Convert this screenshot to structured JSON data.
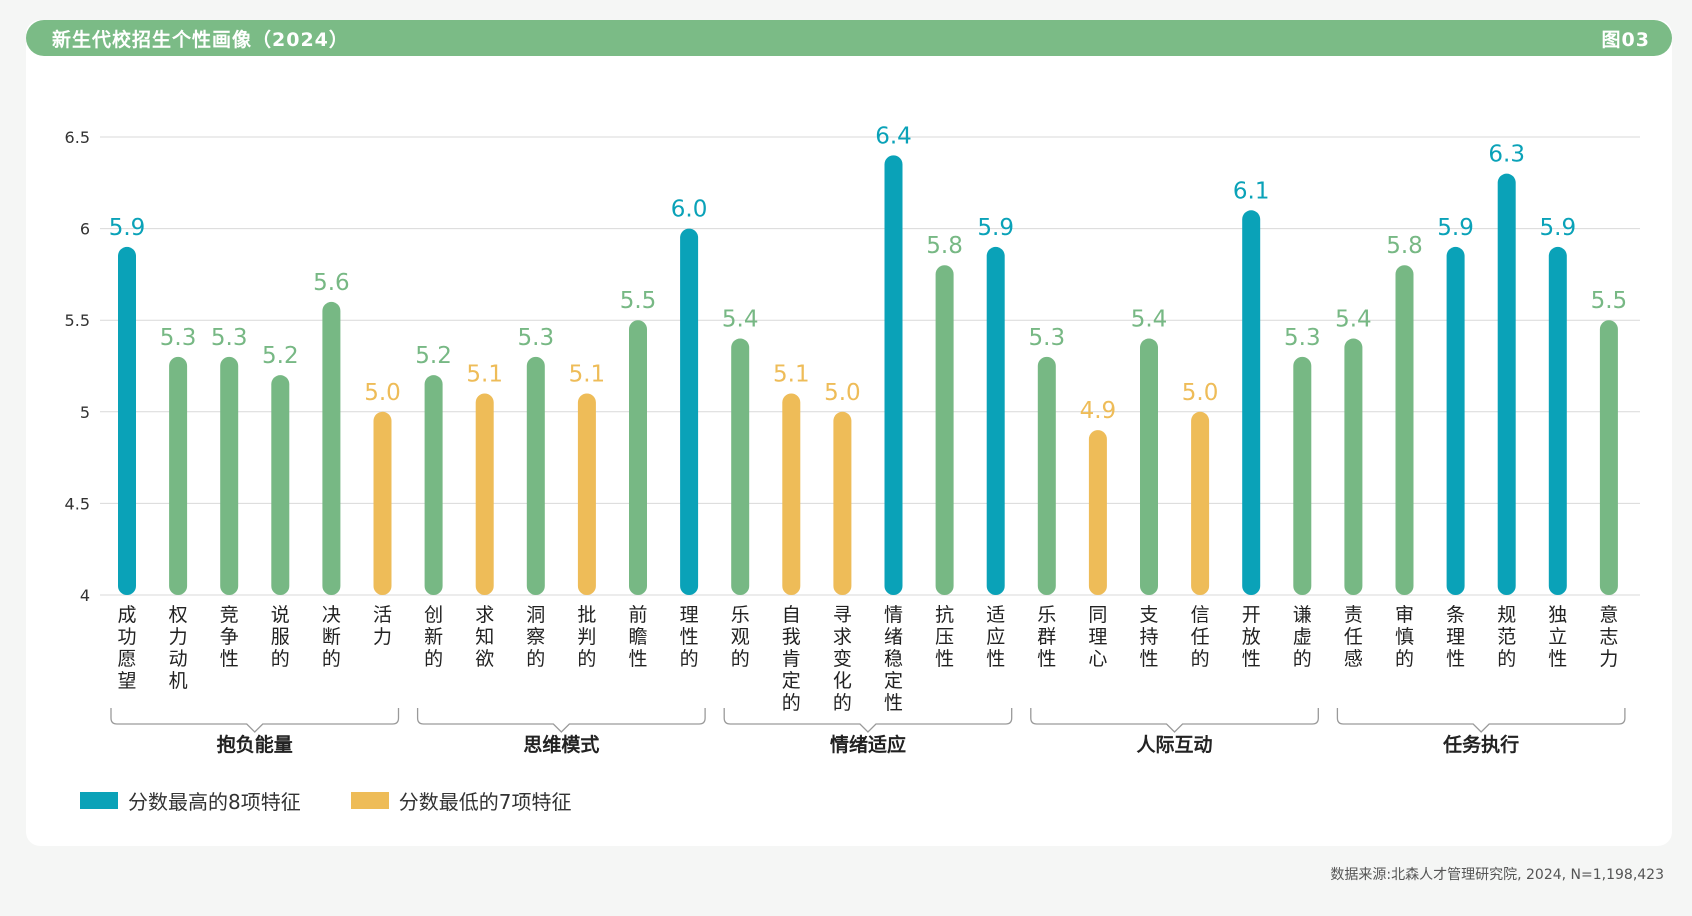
{
  "header": {
    "title": "新生代校招生个性画像（2024）",
    "figure_no": "图03"
  },
  "legend": [
    {
      "label": "分数最高的8项特征",
      "color": "#0aa2b8"
    },
    {
      "label": "分数最低的7项特征",
      "color": "#eebc58"
    }
  ],
  "source": "数据来源:北森人才管理研究院, 2024, N=1,198,423",
  "colors": {
    "high": "#0aa2b8",
    "low": "#eebc58",
    "normal": "#77b884",
    "grid": "#d9d9d9",
    "bracket": "#9a9a9a"
  },
  "chart_data": {
    "type": "bar",
    "ylim": [
      4,
      6.5
    ],
    "yticks": [
      "4",
      "4.5",
      "5",
      "5.5",
      "6",
      "6.5"
    ],
    "groups": [
      {
        "name": "抱负能量",
        "start": 0,
        "end": 5
      },
      {
        "name": "思维模式",
        "start": 6,
        "end": 11
      },
      {
        "name": "情绪适应",
        "start": 12,
        "end": 17
      },
      {
        "name": "人际互动",
        "start": 18,
        "end": 23
      },
      {
        "name": "任务执行",
        "start": 24,
        "end": 29
      }
    ],
    "bars": [
      {
        "label": "成功愿望",
        "value": 5.9,
        "value_label": "5.9",
        "kind": "high"
      },
      {
        "label": "权力动机",
        "value": 5.3,
        "value_label": "5.3",
        "kind": "normal"
      },
      {
        "label": "竞争性",
        "value": 5.3,
        "value_label": "5.3",
        "kind": "normal"
      },
      {
        "label": "说服的",
        "value": 5.2,
        "value_label": "5.2",
        "kind": "normal"
      },
      {
        "label": "决断的",
        "value": 5.6,
        "value_label": "5.6",
        "kind": "normal"
      },
      {
        "label": "活力",
        "value": 5.0,
        "value_label": "5.0",
        "kind": "low"
      },
      {
        "label": "创新的",
        "value": 5.2,
        "value_label": "5.2",
        "kind": "normal"
      },
      {
        "label": "求知欲",
        "value": 5.1,
        "value_label": "5.1",
        "kind": "low"
      },
      {
        "label": "洞察的",
        "value": 5.3,
        "value_label": "5.3",
        "kind": "normal"
      },
      {
        "label": "批判的",
        "value": 5.1,
        "value_label": "5.1",
        "kind": "low"
      },
      {
        "label": "前瞻性",
        "value": 5.5,
        "value_label": "5.5",
        "kind": "normal"
      },
      {
        "label": "理性的",
        "value": 6.0,
        "value_label": "6.0",
        "kind": "high"
      },
      {
        "label": "乐观的",
        "value": 5.4,
        "value_label": "5.4",
        "kind": "normal"
      },
      {
        "label": "自我肯定的",
        "value": 5.1,
        "value_label": "5.1",
        "kind": "low"
      },
      {
        "label": "寻求变化的",
        "value": 5.0,
        "value_label": "5.0",
        "kind": "low"
      },
      {
        "label": "情绪稳定性",
        "value": 6.4,
        "value_label": "6.4",
        "kind": "high"
      },
      {
        "label": "抗压性",
        "value": 5.8,
        "value_label": "5.8",
        "kind": "normal"
      },
      {
        "label": "适应性",
        "value": 5.9,
        "value_label": "5.9",
        "kind": "high"
      },
      {
        "label": "乐群性",
        "value": 5.3,
        "value_label": "5.3",
        "kind": "normal"
      },
      {
        "label": "同理心",
        "value": 4.9,
        "value_label": "4.9",
        "kind": "low"
      },
      {
        "label": "支持性",
        "value": 5.4,
        "value_label": "5.4",
        "kind": "normal"
      },
      {
        "label": "信任的",
        "value": 5.0,
        "value_label": "5.0",
        "kind": "low"
      },
      {
        "label": "开放性",
        "value": 6.1,
        "value_label": "6.1",
        "kind": "high"
      },
      {
        "label": "谦虚的",
        "value": 5.3,
        "value_label": "5.3",
        "kind": "normal"
      },
      {
        "label": "责任感",
        "value": 5.4,
        "value_label": "5.4",
        "kind": "normal"
      },
      {
        "label": "审慎的",
        "value": 5.8,
        "value_label": "5.8",
        "kind": "normal"
      },
      {
        "label": "条理性",
        "value": 5.9,
        "value_label": "5.9",
        "kind": "high"
      },
      {
        "label": "规范的",
        "value": 6.3,
        "value_label": "6.3",
        "kind": "high"
      },
      {
        "label": "独立性",
        "value": 5.9,
        "value_label": "5.9",
        "kind": "high"
      },
      {
        "label": "意志力",
        "value": 5.5,
        "value_label": "5.5",
        "kind": "normal"
      }
    ]
  }
}
